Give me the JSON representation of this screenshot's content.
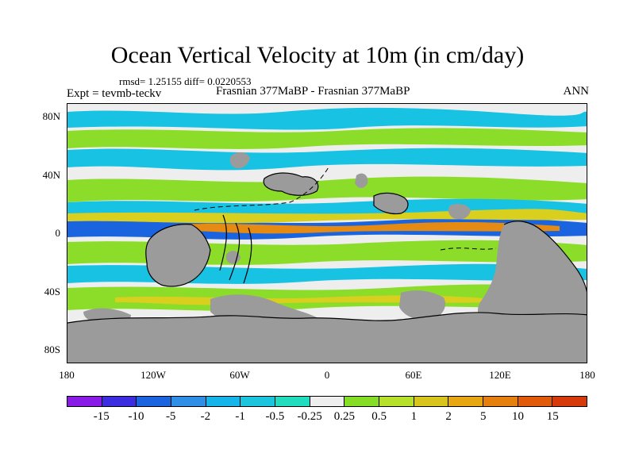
{
  "title": "Ocean Vertical Velocity at 10m (in cm/day)",
  "stats": "rmsd= 1.25155 diff= 0.0220553",
  "expt": "Expt = tevmb-teckv",
  "case": "Frasnian 377MaBP - Frasnian 377MaBP",
  "season": "ANN",
  "lat_labels": [
    "80N",
    "40N",
    "0",
    "40S",
    "80S"
  ],
  "lon_labels": [
    "180",
    "120W",
    "60W",
    "0",
    "60E",
    "120E",
    "180"
  ],
  "colorbar": {
    "labels": [
      "-15",
      "-10",
      "-5",
      "-2",
      "-1",
      "-0.5",
      "-0.25",
      "0.25",
      "0.5",
      "1",
      "2",
      "5",
      "10",
      "15"
    ],
    "colors": [
      "#8a1be6",
      "#3c2ee0",
      "#1a64e0",
      "#2f8fe6",
      "#16b4e8",
      "#1cc4dd",
      "#22dcc0",
      "#eeeeee",
      "#86dd26",
      "#b7e02a",
      "#d7c51e",
      "#e7a712",
      "#e5800f",
      "#e05a0a",
      "#d63a0a"
    ]
  },
  "colors": {
    "land": "#9b9b9b",
    "neutral": "#eeeeee",
    "cyan": "#18c2e3",
    "blue": "#1a64e0",
    "green": "#8cdc2a",
    "yellow": "#d9cf1e",
    "orange": "#e58a12"
  }
}
